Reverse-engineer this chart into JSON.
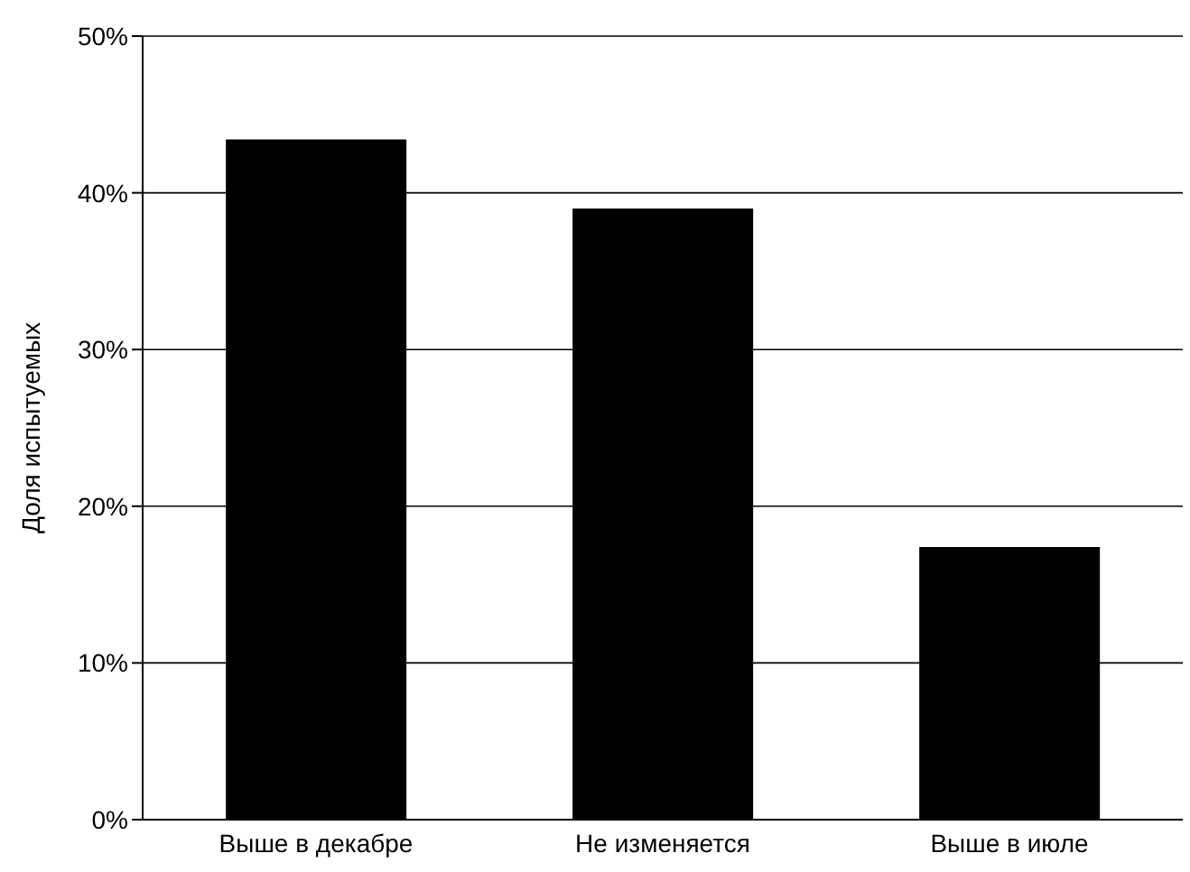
{
  "chart_data": {
    "type": "bar",
    "ylabel": "Доля испытуемых",
    "categories": [
      "Выше в декабре",
      "Не изменяется",
      "Выше в июле"
    ],
    "values": [
      43.4,
      39,
      17.4
    ],
    "color": "#000000",
    "ylim": [
      0,
      50
    ],
    "yticks": [
      {
        "value": 0,
        "label": "0%"
      },
      {
        "value": 10,
        "label": "10%"
      },
      {
        "value": 20,
        "label": "20%"
      },
      {
        "value": 30,
        "label": "30%"
      },
      {
        "value": 40,
        "label": "40%"
      },
      {
        "value": 50,
        "label": "50%"
      }
    ],
    "grid": "y",
    "legend": false
  }
}
